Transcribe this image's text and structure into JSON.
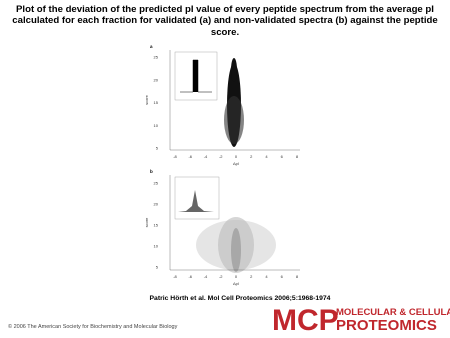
{
  "title": "Plot of the deviation of the predicted pI value of every peptide spectrum from the average pI calculated for each fraction for validated (a) and non-validated spectra (b) against the peptide score.",
  "figure": {
    "panels": [
      {
        "label": "a",
        "y_axis_label": "score",
        "x_axis_label": "ΔpI",
        "yticks": [
          "25",
          "20",
          "15",
          "10",
          "5"
        ],
        "xticks": [
          "-8",
          "-6",
          "-4",
          "-2",
          "0",
          "2",
          "4",
          "6",
          "8"
        ]
      },
      {
        "label": "b",
        "y_axis_label": "score",
        "x_axis_label": "ΔpI",
        "yticks": [
          "25",
          "20",
          "15",
          "10",
          "5"
        ],
        "xticks": [
          "-8",
          "-6",
          "-4",
          "-2",
          "0",
          "2",
          "4",
          "6",
          "8"
        ]
      }
    ]
  },
  "citation": "Patric Hörth et al. Mol Cell Proteomics 2006;5:1968-1974",
  "copyright": "© 2006 The American Society for Biochemistry and Molecular Biology",
  "logo": {
    "mark": "MCP",
    "line1": "MOLECULAR & CELLULAR",
    "line2": "PROTEOMICS"
  }
}
